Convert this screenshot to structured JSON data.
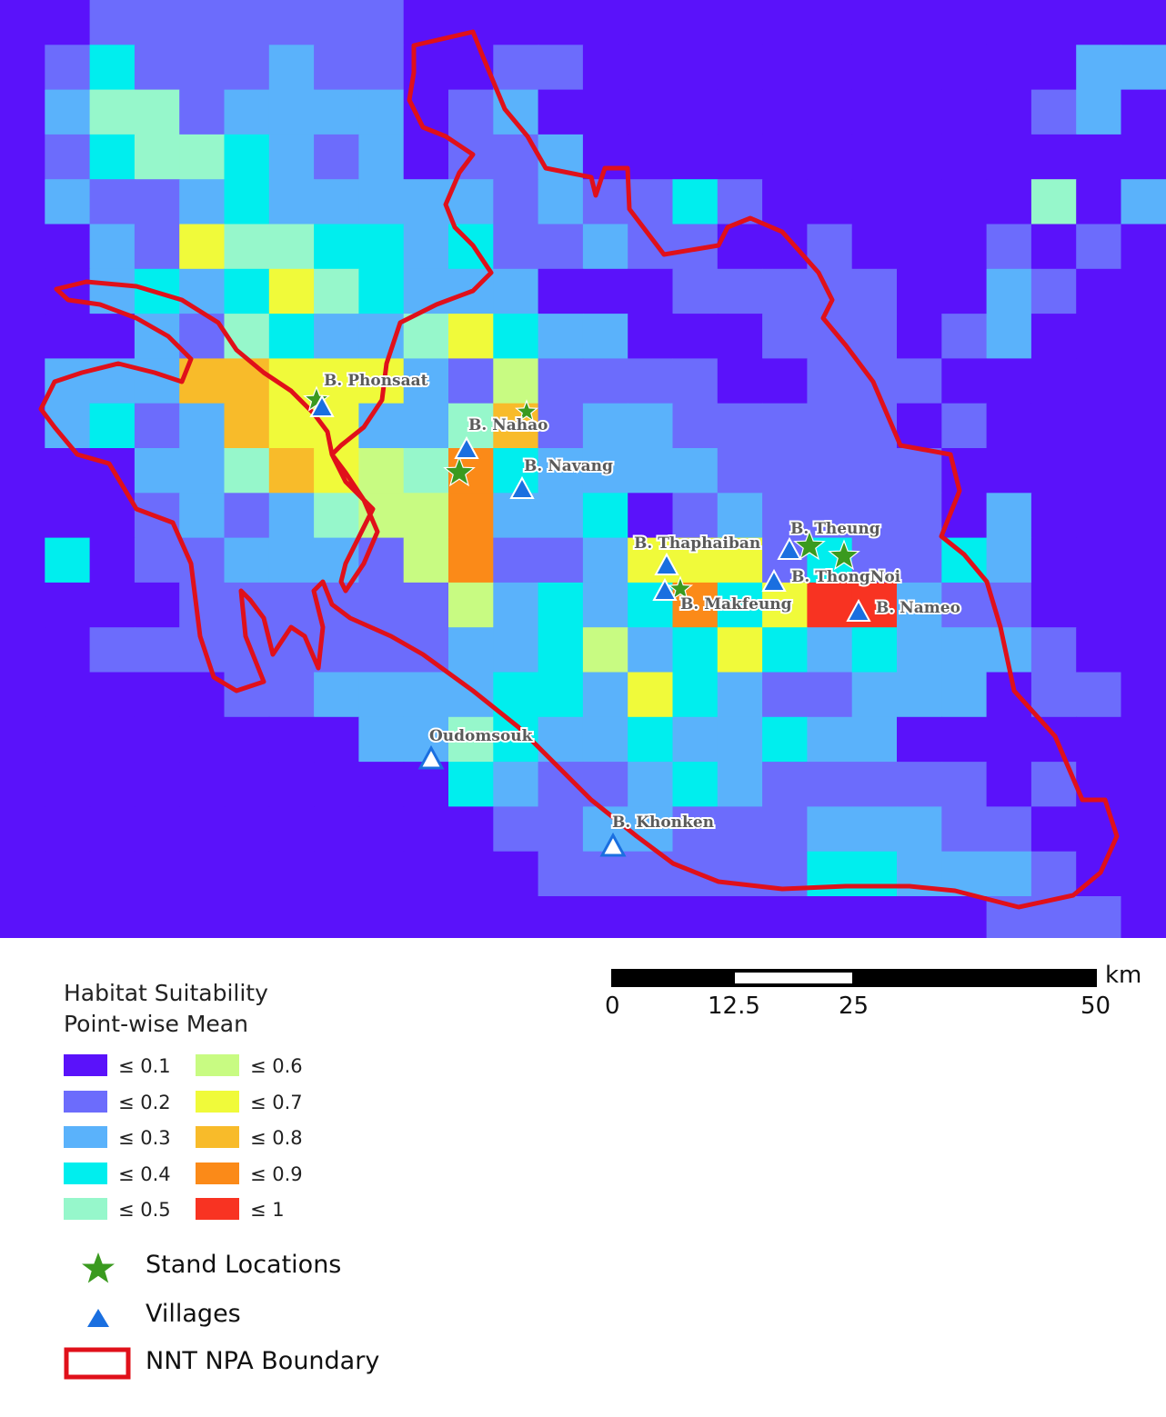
{
  "map": {
    "grid": {
      "cols": 26,
      "rows": 21,
      "palette": {
        "0": "#5a12fa",
        "1": "#6c6cfc",
        "2": "#5ab2fb",
        "3": "#00eeee",
        "4": "#96f7cb",
        "5": "#c8fb82",
        "6": "#f0fa3a",
        "7": "#f8bb2a",
        "8": "#fb8a18",
        "9": "#f83322"
      },
      "cells": [
        "00111111100000000000000000",
        "01311121100110000000000022",
        "02441222201200000000000120",
        "01344321201120000000000000",
        "02112322222121131000000402",
        "00216443323112110010001010",
        "00232364322200011111002100",
        "00021432246322000111012000",
        "02227766621511110011100000",
        "02312766224712211111010000",
        "00022476548322221111100000",
        "00012124558223012111102000",
        "03011222158112666131132000",
        "00001111115232383699211000",
        "00111111112235236323222100",
        "00000112222332632112220110",
        "00000000224322322322000000",
        "00000000003211232111110100",
        "00000000000112211122211000",
        "00000000000011111133222100",
        "00000000000000000000001110"
      ]
    },
    "stand_color": "#3a9a1f",
    "village_color": "#1a6fe0",
    "boundary_color": "#e0101a",
    "villages": [
      {
        "label": "B. Phonsaat"
      },
      {
        "label": "B. Nahao"
      },
      {
        "label": "B. Navang"
      },
      {
        "label": "B. Thaphaiban"
      },
      {
        "label": "B. Makfeung"
      },
      {
        "label": "B. Theung"
      },
      {
        "label": "B. ThongNoi"
      },
      {
        "label": "B. Nameo"
      },
      {
        "label": "Oudomsouk"
      },
      {
        "label": "B. Khonken"
      }
    ]
  },
  "legend": {
    "title_line1": "Habitat Suitability",
    "title_line2": "Point-wise Mean",
    "classes": [
      {
        "label": "≤ 0.1",
        "color": "#5a12fa"
      },
      {
        "label": "≤ 0.2",
        "color": "#6c6cfc"
      },
      {
        "label": "≤ 0.3",
        "color": "#5ab2fb"
      },
      {
        "label": "≤ 0.4",
        "color": "#00eeee"
      },
      {
        "label": "≤ 0.5",
        "color": "#96f7cb"
      },
      {
        "label": "≤ 0.6",
        "color": "#c8fb82"
      },
      {
        "label": "≤ 0.7",
        "color": "#f0fa3a"
      },
      {
        "label": "≤ 0.8",
        "color": "#f8bb2a"
      },
      {
        "label": "≤ 0.9",
        "color": "#fb8a18"
      },
      {
        "label": "≤ 1",
        "color": "#f83322"
      }
    ],
    "stand_label": "Stand Locations",
    "village_label": "Villages",
    "boundary_label": "NNT NPA Boundary"
  },
  "scalebar": {
    "unit": "km",
    "ticks": [
      "0",
      "12.5",
      "25",
      "50"
    ]
  }
}
